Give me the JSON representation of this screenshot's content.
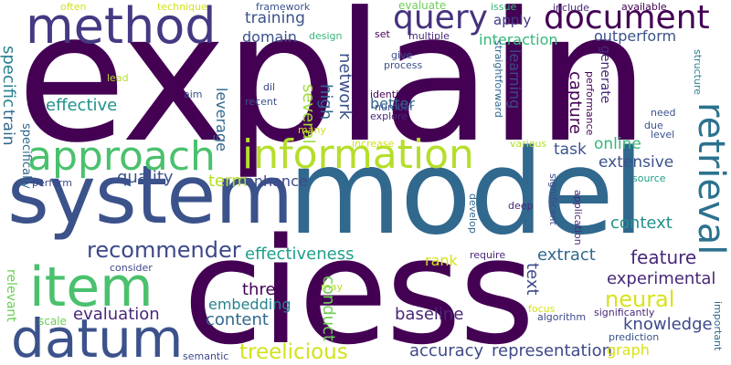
{
  "words": [
    {
      "text": "explain",
      "color": "#440154"
    },
    {
      "text": "model",
      "color": "#31688e"
    },
    {
      "text": "ciess",
      "color": "#440154"
    },
    {
      "text": "system",
      "color": "#3b528b"
    },
    {
      "text": "method",
      "color": "#443983"
    },
    {
      "text": "information",
      "color": "#b5de2b"
    },
    {
      "text": "approach",
      "color": "#4ac16d"
    },
    {
      "text": "datum",
      "color": "#3b528b"
    },
    {
      "text": "item",
      "color": "#4ac16d"
    },
    {
      "text": "query",
      "color": "#46327e"
    },
    {
      "text": "document",
      "color": "#440154"
    },
    {
      "text": "retrieval",
      "color": "#2c728e"
    },
    {
      "text": "recommender",
      "color": "#3e4989"
    },
    {
      "text": "treelicious",
      "color": "#d2e21b"
    },
    {
      "text": "effectiveness",
      "color": "#1f9e89"
    },
    {
      "text": "neural",
      "color": "#d8e219"
    },
    {
      "text": "extract",
      "color": "#31688e"
    },
    {
      "text": "feature",
      "color": "#482878"
    },
    {
      "text": "context",
      "color": "#21918c"
    },
    {
      "text": "representation",
      "color": "#3e4989"
    },
    {
      "text": "accuracy",
      "color": "#3e4989"
    },
    {
      "text": "baseline",
      "color": "#482878"
    },
    {
      "text": "knowledge",
      "color": "#3e4989"
    },
    {
      "text": "experimental",
      "color": "#482878"
    },
    {
      "text": "evaluation",
      "color": "#482878"
    },
    {
      "text": "content",
      "color": "#31688e"
    },
    {
      "text": "embedding",
      "color": "#26828e"
    },
    {
      "text": "three",
      "color": "#440154"
    },
    {
      "text": "conduct",
      "color": "#6ece58"
    },
    {
      "text": "text",
      "color": "#3e4989"
    },
    {
      "text": "rank",
      "color": "#d8e219"
    },
    {
      "text": "graph",
      "color": "#d8e219"
    },
    {
      "text": "quality",
      "color": "#3b528b"
    },
    {
      "text": "term",
      "color": "#b5de2b"
    },
    {
      "text": "enhance",
      "color": "#3e4989"
    },
    {
      "text": "leverage",
      "color": "#31688e"
    },
    {
      "text": "effective",
      "color": "#21918c"
    },
    {
      "text": "training",
      "color": "#3b528b"
    },
    {
      "text": "domain",
      "color": "#3b528b"
    },
    {
      "text": "interaction",
      "color": "#35b779"
    },
    {
      "text": "outperform",
      "color": "#3b528b"
    },
    {
      "text": "apply",
      "color": "#443983"
    },
    {
      "text": "learning",
      "color": "#3e4989"
    },
    {
      "text": "generate",
      "color": "#482878"
    },
    {
      "text": "capture",
      "color": "#440154"
    },
    {
      "text": "network",
      "color": "#3b528b"
    },
    {
      "text": "high",
      "color": "#31688e"
    },
    {
      "text": "several",
      "color": "#a0da39"
    },
    {
      "text": "better",
      "color": "#31688e"
    },
    {
      "text": "task",
      "color": "#3b528b"
    },
    {
      "text": "extensive",
      "color": "#3b528b"
    },
    {
      "text": "online",
      "color": "#35b779"
    },
    {
      "text": "train",
      "color": "#31688e"
    },
    {
      "text": "specific",
      "color": "#26828e"
    },
    {
      "text": "specifically",
      "color": "#31688e"
    },
    {
      "text": "relevant",
      "color": "#6ece58"
    },
    {
      "text": "scale",
      "color": "#6ece58"
    },
    {
      "text": "semantic",
      "color": "#3e4989"
    },
    {
      "text": "often",
      "color": "#d2e21b"
    },
    {
      "text": "technique",
      "color": "#d2e21b"
    },
    {
      "text": "framework",
      "color": "#3b528b"
    },
    {
      "text": "evaluate",
      "color": "#6ece58"
    },
    {
      "text": "issue",
      "color": "#35b779"
    },
    {
      "text": "include",
      "color": "#482878"
    },
    {
      "text": "available",
      "color": "#440154"
    },
    {
      "text": "design",
      "color": "#35b779"
    },
    {
      "text": "set",
      "color": "#440154"
    },
    {
      "text": "multiple",
      "color": "#482878"
    },
    {
      "text": "lead",
      "color": "#b5de2b"
    },
    {
      "text": "aim",
      "color": "#3b528b"
    },
    {
      "text": "dil",
      "color": "#3e4989"
    },
    {
      "text": "recent",
      "color": "#3b528b"
    },
    {
      "text": "give",
      "color": "#3b528b"
    },
    {
      "text": "process",
      "color": "#3b528b"
    },
    {
      "text": "identify",
      "color": "#440154"
    },
    {
      "text": "number",
      "color": "#3b528b"
    },
    {
      "text": "explore",
      "color": "#482878"
    },
    {
      "text": "many",
      "color": "#d2e21b"
    },
    {
      "text": "increase",
      "color": "#d2e21b"
    },
    {
      "text": "various",
      "color": "#b5de2b"
    },
    {
      "text": "straightforward",
      "color": "#31688e"
    },
    {
      "text": "performance",
      "color": "#440154"
    },
    {
      "text": "structure",
      "color": "#26828e"
    },
    {
      "text": "need",
      "color": "#3b528b"
    },
    {
      "text": "due",
      "color": "#3b528b"
    },
    {
      "text": "level",
      "color": "#3b528b"
    },
    {
      "text": "source",
      "color": "#1f9e89"
    },
    {
      "text": "perform",
      "color": "#3e4989"
    },
    {
      "text": "consider",
      "color": "#3e4989"
    },
    {
      "text": "may",
      "color": "#b5de2b"
    },
    {
      "text": "develop",
      "color": "#31688e"
    },
    {
      "text": "deep",
      "color": "#482878"
    },
    {
      "text": "significant",
      "color": "#3e4989"
    },
    {
      "text": "application",
      "color": "#482878"
    },
    {
      "text": "require",
      "color": "#482878"
    },
    {
      "text": "focus",
      "color": "#d2e21b"
    },
    {
      "text": "algorithm",
      "color": "#3e4989"
    },
    {
      "text": "significantly",
      "color": "#482878"
    },
    {
      "text": "prediction",
      "color": "#3b528b"
    },
    {
      "text": "important",
      "color": "#31688e"
    }
  ]
}
